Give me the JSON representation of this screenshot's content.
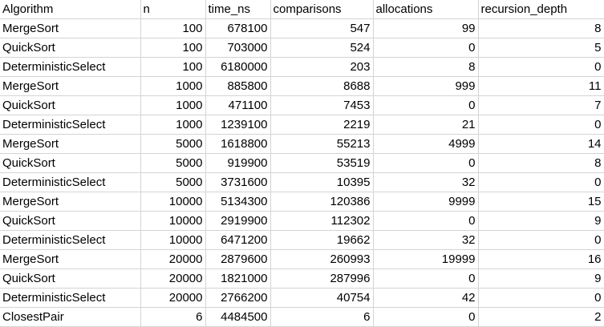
{
  "sheet": {
    "headers": [
      "Algorithm",
      "n",
      "time_ns",
      "comparisons",
      "allocations",
      "recursion_depth"
    ],
    "rows": [
      [
        "MergeSort",
        "100",
        "678100",
        "547",
        "99",
        "8"
      ],
      [
        "QuickSort",
        "100",
        "703000",
        "524",
        "0",
        "5"
      ],
      [
        "DeterministicSelect",
        "100",
        "6180000",
        "203",
        "8",
        "0"
      ],
      [
        "MergeSort",
        "1000",
        "885800",
        "8688",
        "999",
        "11"
      ],
      [
        "QuickSort",
        "1000",
        "471100",
        "7453",
        "0",
        "7"
      ],
      [
        "DeterministicSelect",
        "1000",
        "1239100",
        "2219",
        "21",
        "0"
      ],
      [
        "MergeSort",
        "5000",
        "1618800",
        "55213",
        "4999",
        "14"
      ],
      [
        "QuickSort",
        "5000",
        "919900",
        "53519",
        "0",
        "8"
      ],
      [
        "DeterministicSelect",
        "5000",
        "3731600",
        "10395",
        "32",
        "0"
      ],
      [
        "MergeSort",
        "10000",
        "5134300",
        "120386",
        "9999",
        "15"
      ],
      [
        "QuickSort",
        "10000",
        "2919900",
        "112302",
        "0",
        "9"
      ],
      [
        "DeterministicSelect",
        "10000",
        "6471200",
        "19662",
        "32",
        "0"
      ],
      [
        "MergeSort",
        "20000",
        "2879600",
        "260993",
        "19999",
        "16"
      ],
      [
        "QuickSort",
        "20000",
        "1821000",
        "287996",
        "0",
        "9"
      ],
      [
        "DeterministicSelect",
        "20000",
        "2766200",
        "40754",
        "42",
        "0"
      ],
      [
        "ClosestPair",
        "6",
        "4484500",
        "6",
        "0",
        "2"
      ]
    ]
  }
}
